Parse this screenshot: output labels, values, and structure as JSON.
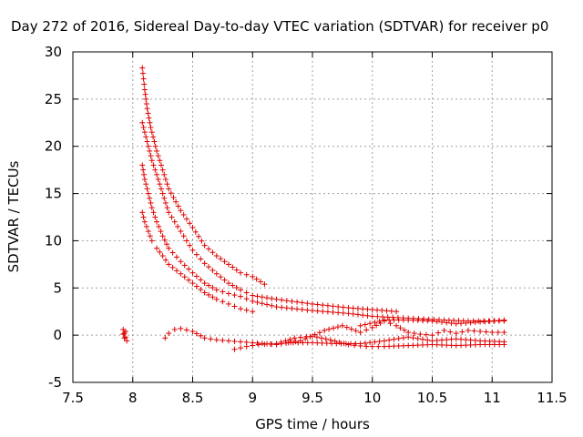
{
  "chart_data": {
    "type": "scatter",
    "title": "Day 272 of 2016, Sidereal Day-to-day VTEC variation (SDTVAR) for receiver p0",
    "xlabel": "GPS time / hours",
    "ylabel": "SDTVAR / TECUs",
    "xlim": [
      7.5,
      11.5
    ],
    "ylim": [
      -5,
      30
    ],
    "xticks": [
      "7.5",
      "8",
      "8.5",
      "9",
      "9.5",
      "10",
      "10.5",
      "11",
      "11.5"
    ],
    "yticks": [
      "-5",
      "0",
      "5",
      "10",
      "15",
      "20",
      "25",
      "30"
    ],
    "grid": true,
    "marker": "+",
    "color": "#e00000",
    "series": [
      {
        "name": "s1",
        "points": [
          [
            8.08,
            28.3
          ],
          [
            8.1,
            26.0
          ],
          [
            8.12,
            24.0
          ],
          [
            8.15,
            22.0
          ],
          [
            8.2,
            19.5
          ],
          [
            8.25,
            17.5
          ],
          [
            8.3,
            15.5
          ],
          [
            8.4,
            13.2
          ],
          [
            8.5,
            11.4
          ],
          [
            8.6,
            9.5
          ],
          [
            8.7,
            8.4
          ],
          [
            8.8,
            7.5
          ],
          [
            8.9,
            6.6
          ],
          [
            9.0,
            6.2
          ],
          [
            9.1,
            5.4
          ]
        ]
      },
      {
        "name": "s2",
        "points": [
          [
            8.08,
            22.5
          ],
          [
            8.12,
            20.5
          ],
          [
            8.16,
            18.5
          ],
          [
            8.2,
            17.0
          ],
          [
            8.25,
            15.0
          ],
          [
            8.3,
            13.0
          ],
          [
            8.4,
            11.0
          ],
          [
            8.5,
            9.0
          ],
          [
            8.6,
            7.6
          ],
          [
            8.7,
            6.5
          ],
          [
            8.8,
            5.5
          ],
          [
            8.9,
            4.8
          ],
          [
            9.0,
            4.2
          ],
          [
            9.2,
            3.8
          ],
          [
            9.5,
            3.3
          ],
          [
            9.8,
            2.9
          ],
          [
            10.0,
            2.7
          ],
          [
            10.2,
            2.5
          ]
        ]
      },
      {
        "name": "s3",
        "points": [
          [
            8.08,
            18.0
          ],
          [
            8.1,
            16.5
          ],
          [
            8.13,
            15.0
          ],
          [
            8.16,
            13.5
          ],
          [
            8.2,
            12.0
          ],
          [
            8.25,
            10.5
          ],
          [
            8.3,
            9.2
          ],
          [
            8.4,
            7.8
          ],
          [
            8.5,
            6.6
          ],
          [
            8.6,
            5.5
          ],
          [
            8.7,
            4.8
          ],
          [
            8.8,
            4.4
          ],
          [
            8.9,
            4.1
          ],
          [
            9.0,
            3.6
          ],
          [
            9.2,
            3.0
          ],
          [
            9.5,
            2.6
          ],
          [
            9.8,
            2.3
          ],
          [
            10.0,
            2.0
          ],
          [
            10.3,
            1.8
          ],
          [
            10.6,
            1.6
          ],
          [
            10.8,
            1.5
          ],
          [
            11.1,
            1.5
          ]
        ]
      },
      {
        "name": "s4",
        "points": [
          [
            8.08,
            13.0
          ],
          [
            8.1,
            12.0
          ],
          [
            8.13,
            11.0
          ],
          [
            8.16,
            10.0
          ],
          [
            8.2,
            9.2
          ],
          [
            8.25,
            8.4
          ],
          [
            8.3,
            7.5
          ],
          [
            8.4,
            6.5
          ],
          [
            8.5,
            5.5
          ],
          [
            8.6,
            4.5
          ],
          [
            8.7,
            3.8
          ],
          [
            8.8,
            3.3
          ],
          [
            8.9,
            2.8
          ],
          [
            9.0,
            2.5
          ]
        ]
      },
      {
        "name": "s5",
        "points": [
          [
            8.27,
            -0.3
          ],
          [
            8.3,
            0.2
          ],
          [
            8.35,
            0.6
          ],
          [
            8.4,
            0.7
          ],
          [
            8.5,
            0.4
          ],
          [
            8.6,
            -0.3
          ],
          [
            8.7,
            -0.5
          ],
          [
            8.8,
            -0.6
          ],
          [
            8.9,
            -0.7
          ],
          [
            9.0,
            -0.8
          ],
          [
            9.2,
            -1.0
          ],
          [
            9.4,
            -0.6
          ],
          [
            9.6,
            0.5
          ],
          [
            9.75,
            1.0
          ],
          [
            9.9,
            0.3
          ],
          [
            10.0,
            0.8
          ],
          [
            10.1,
            1.5
          ],
          [
            10.2,
            1.0
          ],
          [
            10.3,
            0.3
          ],
          [
            10.4,
            0.1
          ],
          [
            10.5,
            0.0
          ],
          [
            10.6,
            0.5
          ],
          [
            10.7,
            0.2
          ],
          [
            10.8,
            0.5
          ],
          [
            10.9,
            0.4
          ],
          [
            11.0,
            0.3
          ],
          [
            11.1,
            0.3
          ]
        ]
      },
      {
        "name": "s6",
        "points": [
          [
            8.85,
            -1.5
          ],
          [
            8.95,
            -1.2
          ],
          [
            9.05,
            -1.0
          ],
          [
            9.2,
            -0.9
          ],
          [
            9.35,
            -0.3
          ],
          [
            9.5,
            -0.1
          ],
          [
            9.65,
            -0.5
          ],
          [
            9.8,
            -1.0
          ],
          [
            9.95,
            -1.2
          ],
          [
            10.1,
            -1.2
          ],
          [
            10.3,
            -1.1
          ],
          [
            10.5,
            -1.0
          ],
          [
            10.7,
            -1.1
          ],
          [
            10.9,
            -1.0
          ],
          [
            11.1,
            -1.0
          ]
        ]
      },
      {
        "name": "s7",
        "points": [
          [
            9.3,
            -0.8
          ],
          [
            9.5,
            -0.8
          ],
          [
            9.7,
            -0.9
          ],
          [
            9.9,
            -0.9
          ],
          [
            10.1,
            -0.6
          ],
          [
            10.3,
            -0.2
          ],
          [
            10.5,
            -0.6
          ],
          [
            10.7,
            -0.4
          ],
          [
            10.9,
            -0.6
          ],
          [
            11.1,
            -0.7
          ]
        ]
      },
      {
        "name": "s8",
        "points": [
          [
            9.9,
            1.0
          ],
          [
            10.1,
            1.6
          ],
          [
            10.3,
            1.6
          ],
          [
            10.5,
            1.5
          ],
          [
            10.7,
            1.2
          ],
          [
            10.9,
            1.4
          ],
          [
            11.1,
            1.6
          ]
        ]
      },
      {
        "name": "s9",
        "points": [
          [
            7.92,
            0.6
          ],
          [
            7.93,
            0.2
          ],
          [
            7.94,
            -0.2
          ],
          [
            7.95,
            -0.6
          ],
          [
            7.93,
            -0.3
          ],
          [
            7.92,
            0.1
          ],
          [
            7.94,
            0.4
          ]
        ]
      }
    ]
  }
}
